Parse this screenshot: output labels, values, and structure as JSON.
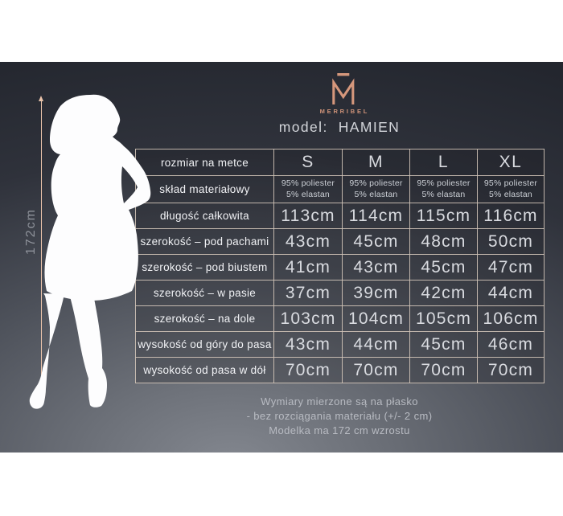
{
  "brand": {
    "logo_letter": "M",
    "name": "MERRIBEL"
  },
  "title": {
    "label": "model:",
    "value": "HAMIEN"
  },
  "figure": {
    "height_label": "172cm"
  },
  "table": {
    "header": {
      "label": "rozmiar na metce",
      "sizes": [
        "S",
        "M",
        "L",
        "XL"
      ]
    },
    "composition": {
      "label": "skład materiałowy",
      "lines": [
        "95% poliester",
        "5% elastan"
      ]
    },
    "rows": [
      {
        "label": "długość całkowita",
        "values": [
          "113cm",
          "114cm",
          "115cm",
          "116cm"
        ]
      },
      {
        "label": "szerokość – pod pachami",
        "values": [
          "43cm",
          "45cm",
          "48cm",
          "50cm"
        ]
      },
      {
        "label": "szerokość – pod biustem",
        "values": [
          "41cm",
          "43cm",
          "45cm",
          "47cm"
        ]
      },
      {
        "label": "szerokość – w pasie",
        "values": [
          "37cm",
          "39cm",
          "42cm",
          "44cm"
        ]
      },
      {
        "label": "szerokość – na dole",
        "values": [
          "103cm",
          "104cm",
          "105cm",
          "106cm"
        ]
      },
      {
        "label": "wysokość od góry do pasa",
        "values": [
          "43cm",
          "44cm",
          "45cm",
          "46cm"
        ]
      },
      {
        "label": "wysokość od pasa w dół",
        "values": [
          "70cm",
          "70cm",
          "70cm",
          "70cm"
        ]
      }
    ]
  },
  "footnote": {
    "lines": [
      "Wymiary mierzone są na płasko",
      "- bez rozciągania materiału (+/- 2 cm)",
      "Modelka ma 172 cm wzrostu"
    ]
  },
  "colors": {
    "accent_salmon": "#d5977c",
    "arrow_peach": "#ecc5ac",
    "table_border": "#d0c3b7",
    "panel_dark": "#23262e",
    "panel_light": "#83878f",
    "text_light": "#d9dbe0",
    "silhouette": "#fdfdfe"
  }
}
